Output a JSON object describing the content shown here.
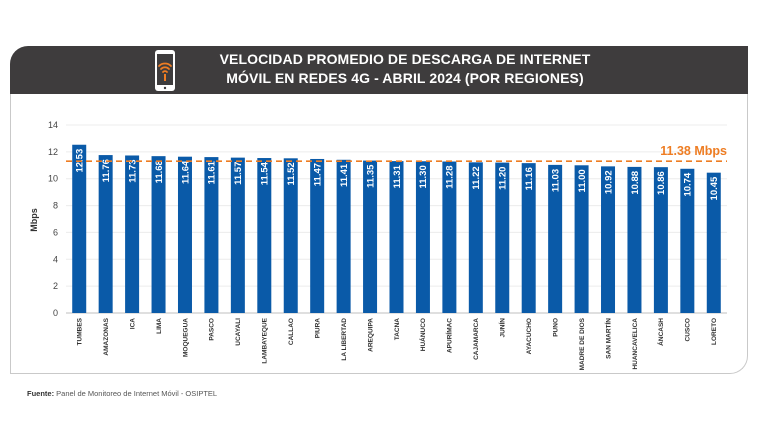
{
  "header": {
    "title_line1": "VELOCIDAD PROMEDIO DE DESCARGA DE INTERNET",
    "title_line2": "MÓVIL EN REDES 4G - ABRIL 2024 (POR REGIONES)",
    "icon": "mobile-wifi-icon"
  },
  "colors": {
    "header_bg": "#3e3c3d",
    "bar": "#0a5aa8",
    "average_line": "#ee7d23",
    "icon_accent": "#ee7d23"
  },
  "chart_data": {
    "type": "bar",
    "title": "VELOCIDAD PROMEDIO DE DESCARGA DE INTERNET MÓVIL EN REDES 4G - ABRIL 2024 (POR REGIONES)",
    "xlabel": "",
    "ylabel": "Mbps",
    "ylim": [
      0,
      14
    ],
    "yticks": [
      0,
      2,
      4,
      6,
      8,
      10,
      12,
      14
    ],
    "grid": true,
    "categories": [
      "TUMBES",
      "AMAZONAS",
      "ICA",
      "LIMA",
      "MOQUEGUA",
      "PASCO",
      "UCAYALI",
      "LAMBAYEQUE",
      "CALLAO",
      "PIURA",
      "LA LIBERTAD",
      "AREQUIPA",
      "TACNA",
      "HUÁNUCO",
      "APURÍMAC",
      "CAJAMARCA",
      "JUNÍN",
      "AYACUCHO",
      "PUNO",
      "MADRE DE DIOS",
      "SAN MARTÍN",
      "HUANCAVELICA",
      "ÁNCASH",
      "CUSCO",
      "LORETO"
    ],
    "values": [
      12.53,
      11.76,
      11.73,
      11.68,
      11.64,
      11.61,
      11.57,
      11.54,
      11.52,
      11.47,
      11.41,
      11.35,
      11.31,
      11.3,
      11.28,
      11.22,
      11.2,
      11.16,
      11.03,
      11.0,
      10.92,
      10.88,
      10.86,
      10.74,
      10.45
    ],
    "value_labels": [
      "12.53",
      "11.76",
      "11.73",
      "11.68",
      "11.64",
      "11.61",
      "11.57",
      "11.54",
      "11.52",
      "11.47",
      "11.41",
      "11.35",
      "11.31",
      "11.30",
      "11.28",
      "11.22",
      "11.20",
      "11.16",
      "11.03",
      "11.00",
      "10.92",
      "10.88",
      "10.86",
      "10.74",
      "10.45"
    ],
    "average": {
      "value": 11.38,
      "label": "11.38 Mbps"
    }
  },
  "footer": {
    "source_label": "Fuente:",
    "source_text": " Panel de Monitoreo de Internet Móvil - OSIPTEL"
  }
}
